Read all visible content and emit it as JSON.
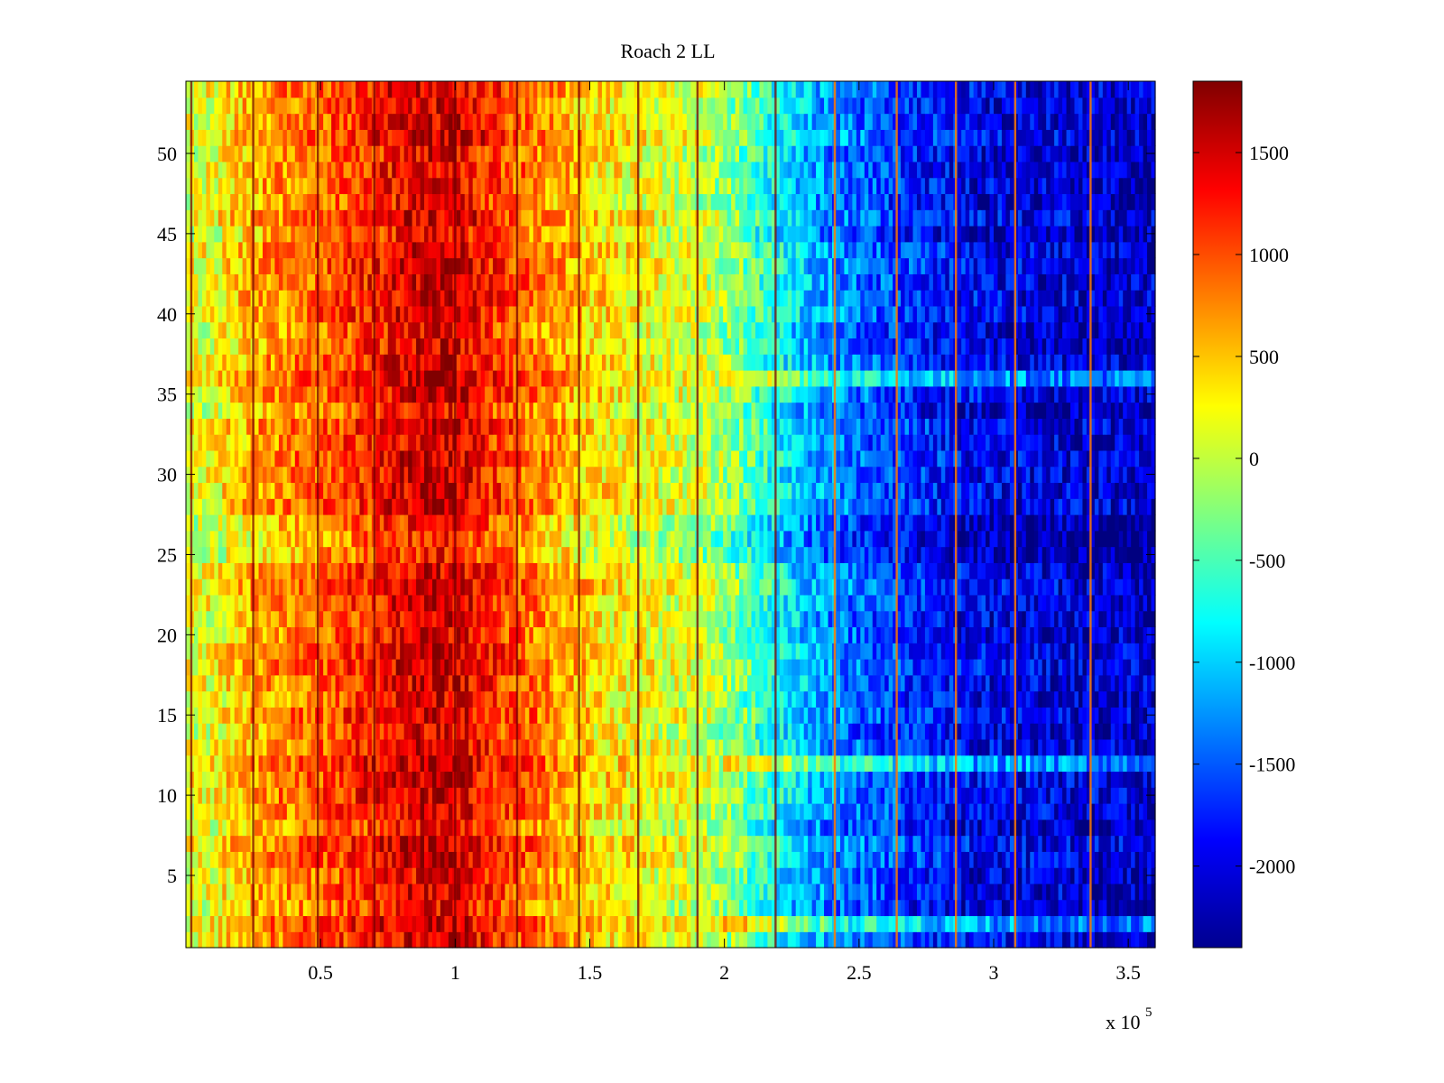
{
  "chart_data": {
    "type": "heatmap",
    "title": "Roach 2 LL",
    "xlabel": "",
    "ylabel": "",
    "x_multiplier": {
      "base": "x 10",
      "exponent": "5"
    },
    "xlim": [
      0,
      360000
    ],
    "ylim": [
      0.5,
      54.5
    ],
    "x_ticks": [
      {
        "value": 50000,
        "label": "0.5"
      },
      {
        "value": 100000,
        "label": "1"
      },
      {
        "value": 150000,
        "label": "1.5"
      },
      {
        "value": 200000,
        "label": "2"
      },
      {
        "value": 250000,
        "label": "2.5"
      },
      {
        "value": 300000,
        "label": "3"
      },
      {
        "value": 350000,
        "label": "3.5"
      }
    ],
    "y_ticks": [
      {
        "value": 5,
        "label": "5"
      },
      {
        "value": 10,
        "label": "10"
      },
      {
        "value": 15,
        "label": "15"
      },
      {
        "value": 20,
        "label": "20"
      },
      {
        "value": 25,
        "label": "25"
      },
      {
        "value": 30,
        "label": "30"
      },
      {
        "value": 35,
        "label": "35"
      },
      {
        "value": 40,
        "label": "40"
      },
      {
        "value": 45,
        "label": "45"
      },
      {
        "value": 50,
        "label": "50"
      }
    ],
    "rows": 54,
    "colormap": "jet",
    "clim": [
      -2400,
      1850
    ],
    "colorbar_ticks": [
      {
        "value": 1500,
        "label": "1500"
      },
      {
        "value": 1000,
        "label": "1000"
      },
      {
        "value": 500,
        "label": "500"
      },
      {
        "value": 0,
        "label": "0"
      },
      {
        "value": -500,
        "label": "-500"
      },
      {
        "value": -1000,
        "label": "-1000"
      },
      {
        "value": -1500,
        "label": "-1500"
      },
      {
        "value": -2000,
        "label": "-2000"
      }
    ],
    "column_profile": {
      "x": [
        0,
        10000,
        25000,
        50000,
        75000,
        90000,
        100000,
        115000,
        130000,
        150000,
        170000,
        190000,
        205000,
        220000,
        235000,
        250000,
        270000,
        290000,
        310000,
        330000,
        360000
      ],
      "values": [
        100,
        200,
        600,
        900,
        1300,
        1500,
        1450,
        1100,
        800,
        400,
        200,
        50,
        -300,
        -800,
        -1200,
        -1450,
        -1700,
        -1900,
        -2000,
        -2050,
        -2100
      ]
    },
    "vertical_streak_x": [
      2000,
      25000,
      49000,
      70000,
      100000,
      123000,
      146000,
      168000,
      190000,
      219000,
      241000,
      264000,
      286000,
      308000,
      336000
    ],
    "cool_rows": [
      2,
      12,
      36
    ],
    "warm_rows": [
      25,
      26,
      27
    ],
    "grid": false
  }
}
